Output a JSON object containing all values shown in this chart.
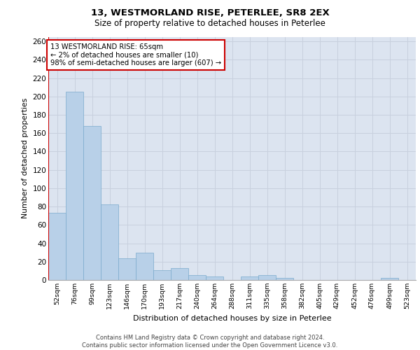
{
  "title1": "13, WESTMORLAND RISE, PETERLEE, SR8 2EX",
  "title2": "Size of property relative to detached houses in Peterlee",
  "xlabel": "Distribution of detached houses by size in Peterlee",
  "ylabel": "Number of detached properties",
  "categories": [
    "52sqm",
    "76sqm",
    "99sqm",
    "123sqm",
    "146sqm",
    "170sqm",
    "193sqm",
    "217sqm",
    "240sqm",
    "264sqm",
    "288sqm",
    "311sqm",
    "335sqm",
    "358sqm",
    "382sqm",
    "405sqm",
    "429sqm",
    "452sqm",
    "476sqm",
    "499sqm",
    "523sqm"
  ],
  "values": [
    73,
    205,
    168,
    82,
    24,
    30,
    11,
    13,
    5,
    4,
    0,
    4,
    5,
    2,
    0,
    0,
    0,
    0,
    0,
    2,
    0
  ],
  "bar_color": "#b8d0e8",
  "bar_edge_color": "#7aabcc",
  "highlight_color": "#cc0000",
  "annotation_text": "13 WESTMORLAND RISE: 65sqm\n← 2% of detached houses are smaller (10)\n98% of semi-detached houses are larger (607) →",
  "annotation_box_color": "#ffffff",
  "annotation_box_edge_color": "#cc0000",
  "ylim": [
    0,
    265
  ],
  "yticks": [
    0,
    20,
    40,
    60,
    80,
    100,
    120,
    140,
    160,
    180,
    200,
    220,
    240,
    260
  ],
  "grid_color": "#c8d0de",
  "background_color": "#dce4f0",
  "footer_line1": "Contains HM Land Registry data © Crown copyright and database right 2024.",
  "footer_line2": "Contains public sector information licensed under the Open Government Licence v3.0.",
  "property_line_x": -0.5
}
